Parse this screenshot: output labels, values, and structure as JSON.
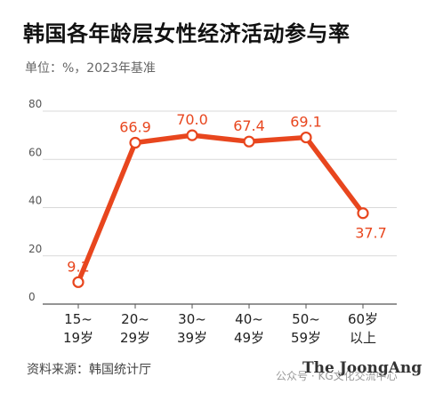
{
  "chart_data": {
    "type": "line",
    "title": "韩国各年龄层女性经济活动参与率",
    "subtitle": "单位：%，2023年基准",
    "categories": [
      [
        "15~",
        "19岁"
      ],
      [
        "20~",
        "29岁"
      ],
      [
        "30~",
        "39岁"
      ],
      [
        "40~",
        "49岁"
      ],
      [
        "50~",
        "59岁"
      ],
      [
        "60岁",
        "以上"
      ]
    ],
    "values": [
      9.1,
      66.9,
      70.0,
      67.4,
      69.1,
      37.7
    ],
    "value_labels": [
      "9.1",
      "66.9",
      "70.0",
      "67.4",
      "69.1",
      "37.7"
    ],
    "ylim": [
      0,
      80
    ],
    "yticks": [
      "0",
      "20",
      "40",
      "60",
      "80"
    ],
    "grid": true,
    "color": "#e8461e"
  },
  "footer": {
    "source": "资料来源：韩国统计厅",
    "brand": "The JoongAng",
    "watermark": "公众号 · KG文化交流中心"
  }
}
